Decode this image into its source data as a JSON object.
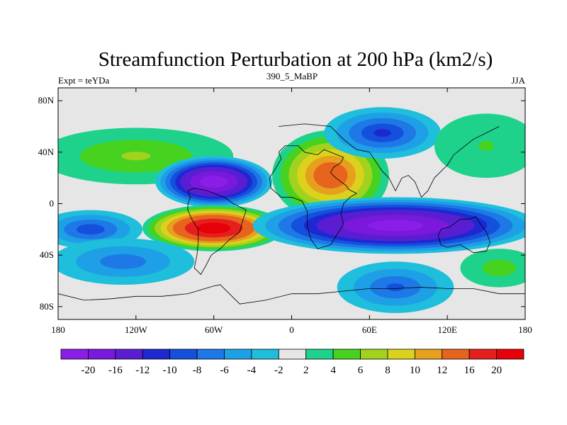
{
  "chart_data": {
    "type": "heatmap",
    "title": "Streamfunction Perturbation at 200 hPa (km2/s)",
    "left_label": "Expt = teYDa",
    "center_label": "390_5_MaBP",
    "right_label": "JJA",
    "xlabel": "",
    "ylabel": "",
    "xlim": [
      -180,
      180
    ],
    "ylim": [
      -90,
      90
    ],
    "x_ticks": [
      {
        "value": -180,
        "label": "180"
      },
      {
        "value": -120,
        "label": "120W"
      },
      {
        "value": -60,
        "label": "60W"
      },
      {
        "value": 0,
        "label": "0"
      },
      {
        "value": 60,
        "label": "60E"
      },
      {
        "value": 120,
        "label": "120E"
      },
      {
        "value": 180,
        "label": "180"
      }
    ],
    "y_ticks": [
      {
        "value": 80,
        "label": "80N"
      },
      {
        "value": 40,
        "label": "40N"
      },
      {
        "value": 0,
        "label": "0"
      },
      {
        "value": -40,
        "label": "40S"
      },
      {
        "value": -80,
        "label": "80S"
      }
    ],
    "colorbar": {
      "levels": [
        "-20",
        "-16",
        "-12",
        "-10",
        "-8",
        "-6",
        "-4",
        "-2",
        "2",
        "4",
        "6",
        "8",
        "10",
        "12",
        "16",
        "20"
      ],
      "colors": [
        "#8b1ee6",
        "#7a18dc",
        "#5a1ed2",
        "#1e28d2",
        "#1450dc",
        "#1e78e6",
        "#1ea0e6",
        "#1ebedc",
        "#e6e6e6",
        "#1ed28c",
        "#46d21e",
        "#a0d21e",
        "#dcd21e",
        "#e6a01e",
        "#e6641e",
        "#e61e1e",
        "#e6000a"
      ]
    },
    "features": [
      {
        "name": "N Pacific positive",
        "lon": -120,
        "lat": 37,
        "value": 6
      },
      {
        "name": "Atlantic negative",
        "lon": -60,
        "lat": 17,
        "value": -22
      },
      {
        "name": "S America positive",
        "lon": -60,
        "lat": -19,
        "value": 22
      },
      {
        "name": "Arabia positive",
        "lon": 30,
        "lat": 22,
        "value": 14
      },
      {
        "name": "Eurasia negative",
        "lon": 70,
        "lat": 55,
        "value": -10
      },
      {
        "name": "Indian Ocean negative",
        "lon": 80,
        "lat": -17,
        "value": -21
      },
      {
        "name": "SE Pacific negative",
        "lon": -155,
        "lat": -20,
        "value": -9
      },
      {
        "name": "S Atlantic negative",
        "lon": -130,
        "lat": -45,
        "value": -7
      },
      {
        "name": "S Indian negative",
        "lon": 80,
        "lat": -65,
        "value": -8
      },
      {
        "name": "SW Pacific positive",
        "lon": 160,
        "lat": -50,
        "value": 5
      },
      {
        "name": "E Asia positive",
        "lon": 150,
        "lat": 45,
        "value": 4
      }
    ]
  }
}
